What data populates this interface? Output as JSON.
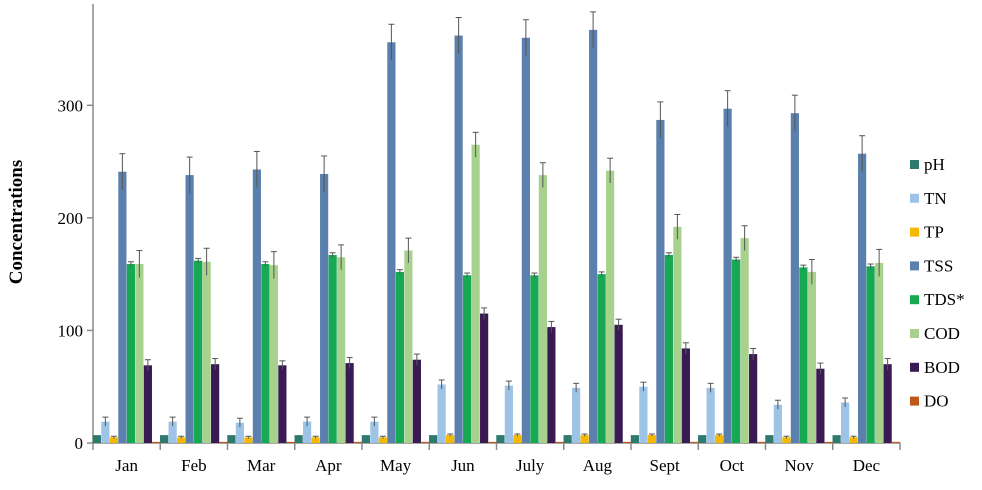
{
  "chart_data": {
    "type": "bar",
    "ylabel": "Concentrations",
    "xlabel": "",
    "ylim": [
      0,
      390
    ],
    "yticks": [
      0,
      100,
      200,
      300
    ],
    "grid": false,
    "legend_position": "right",
    "error_bars": true,
    "categories": [
      "Jan",
      "Feb",
      "Mar",
      "Apr",
      "May",
      "Jun",
      "July",
      "Aug",
      "Sept",
      "Oct",
      "Nov",
      "Dec"
    ],
    "series": [
      {
        "name": "pH",
        "color": "#2e7b6e",
        "values": [
          7,
          7,
          7,
          7,
          7,
          7,
          7,
          7,
          7,
          7,
          7,
          7
        ],
        "errors": [
          0,
          0,
          0,
          0,
          0,
          0,
          0,
          0,
          0,
          0,
          0,
          0
        ]
      },
      {
        "name": "TN",
        "color": "#9dc3e6",
        "values": [
          19,
          19,
          18,
          19,
          19,
          52,
          51,
          49,
          50,
          49,
          34,
          36
        ],
        "errors": [
          4,
          4,
          4,
          4,
          4,
          4,
          4,
          4,
          4,
          4,
          4,
          4
        ]
      },
      {
        "name": "TP",
        "color": "#f5b800",
        "values": [
          5,
          5,
          5,
          5,
          5,
          7,
          7,
          7,
          7,
          7,
          5,
          5
        ],
        "errors": [
          1,
          1,
          1,
          1,
          1,
          1,
          1,
          1,
          1,
          1,
          1,
          1
        ]
      },
      {
        "name": "TSS",
        "color": "#5b80ad",
        "values": [
          241,
          238,
          243,
          239,
          356,
          362,
          360,
          367,
          287,
          297,
          293,
          257
        ],
        "errors": [
          16,
          16,
          16,
          16,
          16,
          16,
          16,
          16,
          16,
          16,
          16,
          16
        ]
      },
      {
        "name": "TDS*",
        "color": "#17a854",
        "values": [
          159,
          162,
          159,
          167,
          152,
          149,
          149,
          150,
          167,
          163,
          156,
          157
        ],
        "errors": [
          2,
          2,
          2,
          2,
          2,
          2,
          2,
          2,
          2,
          2,
          2,
          2
        ]
      },
      {
        "name": "COD",
        "color": "#a9d18e",
        "values": [
          159,
          161,
          158,
          165,
          171,
          265,
          238,
          242,
          192,
          182,
          152,
          160
        ],
        "errors": [
          12,
          12,
          12,
          11,
          11,
          11,
          11,
          11,
          11,
          11,
          11,
          12
        ]
      },
      {
        "name": "BOD",
        "color": "#3a1a52",
        "values": [
          69,
          70,
          69,
          71,
          74,
          115,
          103,
          105,
          84,
          79,
          66,
          70
        ],
        "errors": [
          5,
          5,
          4,
          5,
          5,
          5,
          5,
          5,
          5,
          5,
          5,
          5
        ]
      },
      {
        "name": "DO",
        "color": "#c0581a",
        "values": [
          1,
          1,
          1,
          1,
          1,
          1,
          1,
          1,
          1,
          1,
          1,
          1
        ],
        "errors": [
          0,
          0,
          0,
          0,
          0,
          0,
          0,
          0,
          0,
          0,
          0,
          0
        ]
      }
    ]
  }
}
